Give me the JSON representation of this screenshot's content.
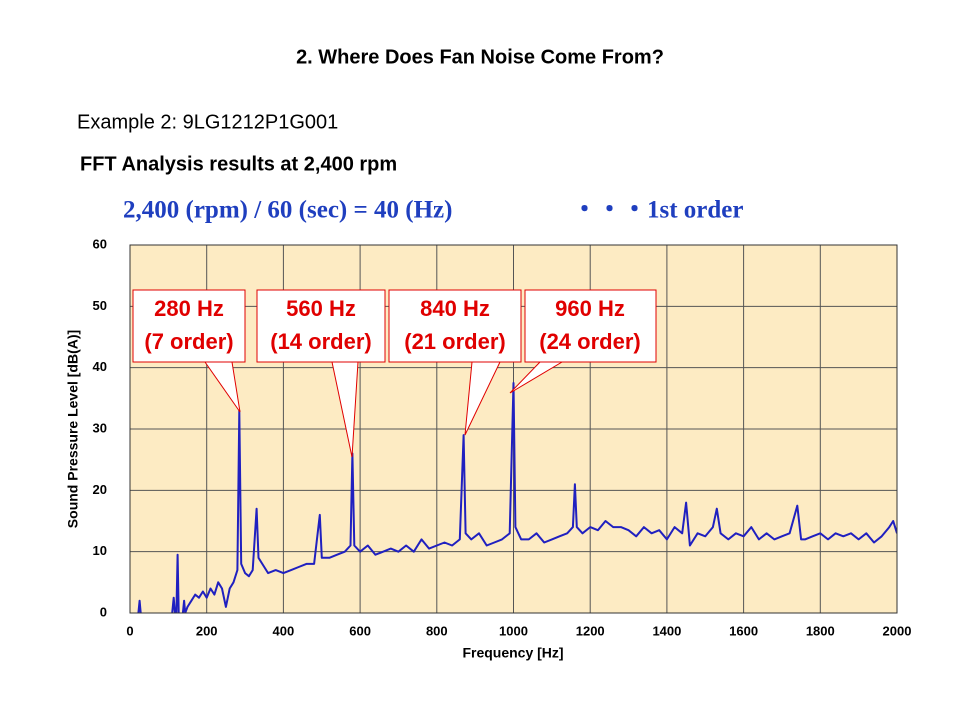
{
  "slide": {
    "title": "2. Where Does Fan Noise Come From?",
    "subtitle": "Example 2: 9LG1212P1G001",
    "heading": "FFT Analysis results at 2,400 rpm",
    "formula": "2,400 (rpm) / 60 (sec) =  40 (Hz)",
    "formula_note": "・・・1st order"
  },
  "chart_data": {
    "type": "line",
    "x_label": "Frequency [Hz]",
    "y_label": "Sound Pressure Level [dB(A)]",
    "xlim": [
      0,
      2000
    ],
    "ylim": [
      0,
      60
    ],
    "xticks": [
      0,
      200,
      400,
      600,
      800,
      1000,
      1200,
      1400,
      1600,
      1800,
      2000
    ],
    "yticks": [
      0,
      10,
      20,
      30,
      40,
      50,
      60
    ],
    "grid": true,
    "annotations": [
      {
        "lines": [
          "280 Hz",
          "(7 order)"
        ]
      },
      {
        "lines": [
          "560 Hz",
          "(14 order)"
        ]
      },
      {
        "lines": [
          "840 Hz",
          "(21 order)"
        ]
      },
      {
        "lines": [
          "960 Hz",
          "(24 order)"
        ]
      }
    ],
    "x": [
      22,
      25,
      28,
      40,
      110,
      114,
      117,
      121,
      124,
      127,
      135,
      138,
      141,
      144,
      150,
      160,
      170,
      180,
      190,
      200,
      210,
      220,
      230,
      240,
      250,
      260,
      270,
      280,
      285,
      290,
      300,
      310,
      320,
      330,
      335,
      345,
      360,
      380,
      400,
      420,
      440,
      460,
      480,
      495,
      500,
      520,
      540,
      560,
      575,
      580,
      585,
      600,
      620,
      640,
      660,
      680,
      700,
      720,
      740,
      760,
      780,
      800,
      820,
      840,
      860,
      870,
      875,
      890,
      910,
      930,
      950,
      970,
      990,
      1000,
      1005,
      1020,
      1040,
      1060,
      1080,
      1100,
      1120,
      1140,
      1155,
      1160,
      1165,
      1180,
      1200,
      1220,
      1240,
      1260,
      1280,
      1300,
      1320,
      1340,
      1360,
      1380,
      1400,
      1420,
      1440,
      1450,
      1460,
      1480,
      1500,
      1520,
      1530,
      1540,
      1560,
      1580,
      1600,
      1620,
      1640,
      1660,
      1680,
      1700,
      1720,
      1740,
      1750,
      1760,
      1780,
      1800,
      1820,
      1840,
      1860,
      1880,
      1900,
      1920,
      1940,
      1960,
      1980,
      1990,
      2000
    ],
    "series": [
      {
        "color": "#2020c0",
        "values": [
          0,
          2,
          0,
          null,
          0,
          2.5,
          0,
          0,
          9.5,
          0,
          null,
          0,
          2,
          0,
          1,
          2,
          3,
          2.5,
          3.5,
          2.5,
          4,
          3,
          5,
          4,
          1,
          4,
          5,
          7,
          33,
          8,
          6.5,
          6,
          7,
          17,
          9,
          8,
          6.5,
          7,
          6.5,
          7,
          7.5,
          8,
          8,
          16,
          9,
          9,
          9.5,
          10,
          11,
          26,
          11,
          10,
          11,
          9.5,
          10,
          10.5,
          10,
          11,
          10,
          12,
          10.5,
          11,
          11.5,
          11,
          12,
          29,
          13,
          12,
          13,
          11,
          11.5,
          12,
          13,
          37.5,
          14,
          12,
          12,
          13,
          11.5,
          12,
          12.5,
          13,
          14,
          21,
          14,
          13,
          14,
          13.5,
          15,
          14,
          14,
          13.5,
          12.5,
          14,
          13,
          13.5,
          12,
          14,
          13,
          18,
          11,
          13,
          12.5,
          14,
          17,
          13,
          12,
          13,
          12.5,
          14,
          12,
          13,
          12,
          12.5,
          13,
          17.5,
          12,
          12,
          12.5,
          13,
          12,
          13,
          12.5,
          13,
          12,
          13,
          11.5,
          12.5,
          14,
          15,
          13
        ]
      }
    ]
  }
}
